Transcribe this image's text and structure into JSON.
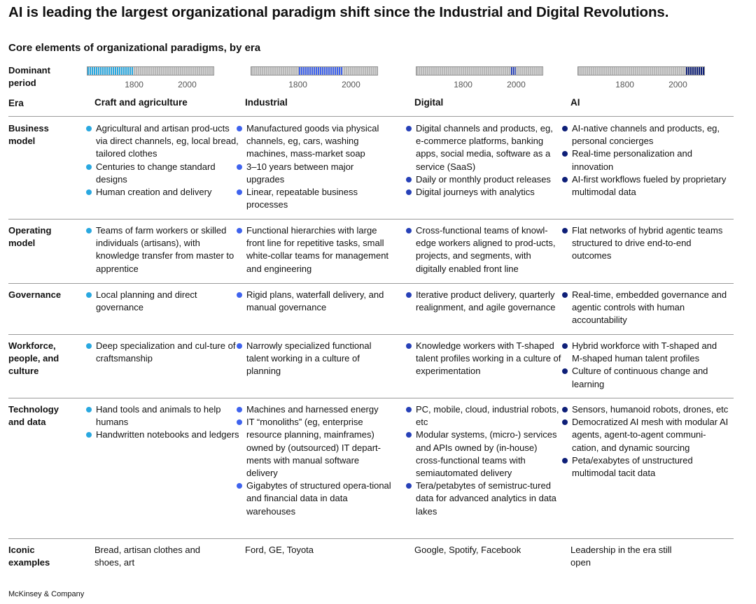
{
  "title": "AI is leading the largest organizational paradigm shift since the Industrial and Digital Revolutions.",
  "subtitle": "Core elements of organizational paradigms, by era",
  "dominant_period_label": "Dominant period",
  "era_label": "Era",
  "ticks": [
    "1800",
    "2000"
  ],
  "timeline": {
    "start": 1620,
    "end": 2100
  },
  "colors": {
    "craft": "#29a8e0",
    "industrial": "#3f63ee",
    "digital": "#2741b8",
    "ai": "#0e1f78",
    "grid": "#b8b8b8"
  },
  "eras": [
    {
      "name": "Craft and agriculture",
      "period": [
        1620,
        1800
      ]
    },
    {
      "name": "Industrial",
      "period": [
        1800,
        1970
      ]
    },
    {
      "name": "Digital",
      "period": [
        1975,
        2000
      ]
    },
    {
      "name": "AI",
      "period": [
        2025,
        2100
      ]
    }
  ],
  "rows": [
    {
      "label": "Business model",
      "cells": [
        [
          "Agricultural and artisan prod-ucts via direct channels, eg, local bread, tailored clothes",
          "Centuries to change standard designs",
          "Human creation and delivery"
        ],
        [
          "Manufactured goods via physical channels, eg, cars, washing machines, mass-market soap",
          "3–10 years between major upgrades",
          "Linear, repeatable business processes"
        ],
        [
          "Digital channels and products, eg, e-commerce platforms, banking apps, social media, software as a service (SaaS)",
          "Daily or monthly product releases",
          "Digital journeys with analytics"
        ],
        [
          "AI-native channels and products, eg, personal concierges",
          "Real-time personalization and innovation",
          "AI-first workflows fueled by proprietary multimodal data"
        ]
      ]
    },
    {
      "label": "Operating model",
      "cells": [
        [
          "Teams of farm workers or skilled individuals (artisans), with knowledge transfer from master to apprentice"
        ],
        [
          "Functional hierarchies with large front line for repetitive tasks, small white-collar teams for management and engineering"
        ],
        [
          "Cross-functional teams of knowl-edge workers aligned to prod-ucts, projects, and segments, with digitally enabled front line"
        ],
        [
          "Flat networks of hybrid agentic teams structured to drive end-to-end outcomes"
        ]
      ]
    },
    {
      "label": "Governance",
      "cells": [
        [
          "Local planning and direct governance"
        ],
        [
          "Rigid plans, waterfall delivery, and manual governance"
        ],
        [
          "Iterative product delivery, quarterly realignment, and agile governance"
        ],
        [
          "Real-time, embedded governance and agentic controls with human accountability"
        ]
      ]
    },
    {
      "label": "Workforce, people, and culture",
      "cells": [
        [
          "Deep specialization and cul-ture of craftsmanship"
        ],
        [
          "Narrowly specialized functional talent working in a culture of planning"
        ],
        [
          "Knowledge workers with T-shaped talent profiles working in a culture of experimentation"
        ],
        [
          "Hybrid workforce with T-shaped and M-shaped human talent profiles",
          "Culture of continuous change and learning"
        ]
      ]
    },
    {
      "label": "Technology and data",
      "cells": [
        [
          "Hand tools and animals to help humans",
          "Handwritten notebooks and ledgers"
        ],
        [
          "Machines and harnessed energy",
          "IT “monoliths” (eg, enterprise resource planning, mainframes) owned by (outsourced) IT depart-ments with manual software delivery",
          "Gigabytes of structured opera-tional and financial data in data warehouses"
        ],
        [
          "PC, mobile, cloud, industrial robots, etc",
          "Modular systems, (micro-) services and APIs owned by (in-house) cross-functional teams with semiautomated delivery",
          "Tera/petabytes of semistruc-tured data for advanced analytics in data lakes"
        ],
        [
          "Sensors, humanoid robots, drones, etc",
          "Democratized AI mesh with modular AI agents, agent-to-agent communi-cation, and dynamic sourcing",
          "Peta/exabytes of unstructured multimodal tacit data"
        ]
      ]
    }
  ],
  "iconic": {
    "label": "Iconic examples",
    "values": [
      "Bread, artisan clothes and shoes, art",
      "Ford, GE, Toyota",
      "Google, Spotify, Facebook",
      "Leadership in the era still open"
    ]
  },
  "footer": "McKinsey & Company"
}
